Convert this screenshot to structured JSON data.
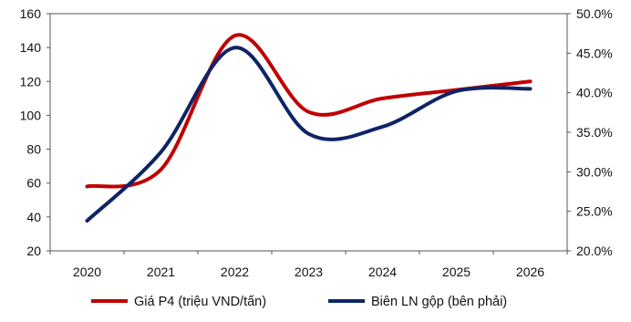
{
  "chart_data": {
    "type": "line",
    "categories": [
      "2020",
      "2021",
      "2022",
      "2023",
      "2024",
      "2025",
      "2026"
    ],
    "y_left": {
      "ticks": [
        "20",
        "40",
        "60",
        "80",
        "100",
        "120",
        "140",
        "160"
      ],
      "min": 20,
      "max": 160
    },
    "y_right": {
      "ticks": [
        "20.0%",
        "25.0%",
        "30.0%",
        "35.0%",
        "40.0%",
        "45.0%",
        "50.0%"
      ],
      "min": 20,
      "max": 50
    },
    "series": [
      {
        "name": "Giá P4 (triệu VND/tấn)",
        "axis": "left",
        "color": "#C00000",
        "values": [
          58,
          68,
          147,
          102,
          110,
          115,
          120
        ]
      },
      {
        "name": "Biên LN gộp (bên phải)",
        "axis": "right",
        "color": "#0E2466",
        "values": [
          23.8,
          32.5,
          45.7,
          34.8,
          35.7,
          40.2,
          40.5
        ]
      }
    ],
    "grid": false,
    "legend_position": "bottom"
  }
}
